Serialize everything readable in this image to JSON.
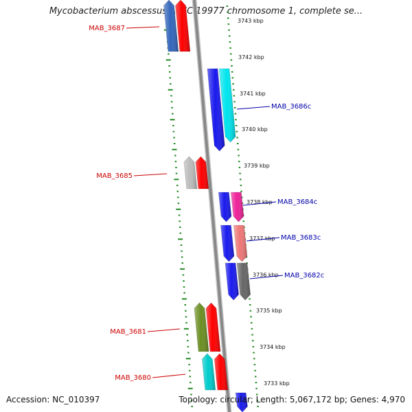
{
  "title": "Mycobacterium abscessus ATCC 19977 chromosome 1, complete se...",
  "footer": {
    "accession": "Accession: NC_010397",
    "summary": "Topology: circular; Length: 5,067,172 bp; Genes: 4,970"
  },
  "colors": {
    "label_forward": "#cc0000",
    "label_reverse": "#0000aa",
    "backbone": "#888888",
    "ticks": "#228822"
  },
  "ticks": [
    {
      "label": "3743 kbp",
      "kbp": 3743
    },
    {
      "label": "3742 kbp",
      "kbp": 3742
    },
    {
      "label": "3741 kbp",
      "kbp": 3741
    },
    {
      "label": "3740 kbp",
      "kbp": 3740
    },
    {
      "label": "3739 kbp",
      "kbp": 3739
    },
    {
      "label": "3738 kbp",
      "kbp": 3738
    },
    {
      "label": "3737 kbp",
      "kbp": 3737
    },
    {
      "label": "3736 kbp",
      "kbp": 3736
    },
    {
      "label": "3735 kbp",
      "kbp": 3735
    },
    {
      "label": "3734 kbp",
      "kbp": 3734
    },
    {
      "label": "3733 kbp",
      "kbp": 3733
    }
  ],
  "gene_labels": [
    {
      "name": "MAB_3687",
      "strand": "forward"
    },
    {
      "name": "MAB_3686c",
      "strand": "reverse"
    },
    {
      "name": "MAB_3685",
      "strand": "forward"
    },
    {
      "name": "MAB_3684c",
      "strand": "reverse"
    },
    {
      "name": "MAB_3683c",
      "strand": "reverse"
    },
    {
      "name": "MAB_3682c",
      "strand": "reverse"
    },
    {
      "name": "MAB_3681",
      "strand": "forward"
    },
    {
      "name": "MAB_3680",
      "strand": "forward"
    }
  ],
  "features": [
    {
      "kind": "gene",
      "color": "#3366bb",
      "strand": "forward"
    },
    {
      "kind": "cds",
      "color": "#ff0000",
      "strand": "forward"
    },
    {
      "kind": "gene",
      "color": "#1a1aee",
      "strand": "reverse"
    },
    {
      "kind": "cds",
      "color": "#00e5ee",
      "strand": "reverse"
    },
    {
      "kind": "gene",
      "color": "#bbbbbb",
      "strand": "forward"
    },
    {
      "kind": "cds",
      "color": "#ff0000",
      "strand": "forward"
    },
    {
      "kind": "gene",
      "color": "#1a1aee",
      "strand": "reverse"
    },
    {
      "kind": "cds",
      "color": "#ee2299",
      "strand": "reverse"
    },
    {
      "kind": "gene",
      "color": "#1a1aee",
      "strand": "reverse"
    },
    {
      "kind": "cds",
      "color": "#ee7777",
      "strand": "reverse"
    },
    {
      "kind": "gene",
      "color": "#1a1aee",
      "strand": "reverse"
    },
    {
      "kind": "cds",
      "color": "#666666",
      "strand": "reverse"
    },
    {
      "kind": "gene",
      "color": "#6b8e23",
      "strand": "forward"
    },
    {
      "kind": "cds",
      "color": "#ff0000",
      "strand": "forward"
    },
    {
      "kind": "gene",
      "color": "#00cccc",
      "strand": "forward"
    },
    {
      "kind": "cds",
      "color": "#ff0000",
      "strand": "forward"
    },
    {
      "kind": "gene",
      "color": "#1a1aee",
      "strand": "reverse"
    }
  ]
}
